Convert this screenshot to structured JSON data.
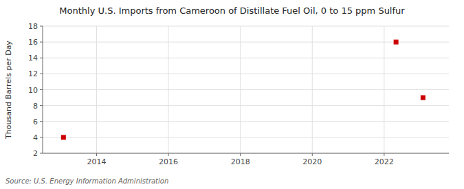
{
  "chart_data": {
    "type": "scatter",
    "title": "Monthly U.S. Imports from Cameroon of Distillate Fuel Oil, 0 to 15 ppm Sulfur",
    "ylabel": "Thousand Barrels per Day",
    "annotations": [
      "Source: U.S. Energy Information Administration"
    ],
    "x": [
      2013.08,
      2022.33,
      2023.08
    ],
    "values": [
      4.0,
      16.0,
      9.0
    ],
    "color": "#cc0000",
    "marker": "square",
    "xlim": [
      2012.5,
      2023.8
    ],
    "ylim": [
      2,
      18
    ],
    "xticks": [
      2014,
      2016,
      2018,
      2020,
      2022
    ],
    "yticks": [
      2,
      4,
      6,
      8,
      10,
      12,
      14,
      16,
      18
    ],
    "grid": true
  }
}
